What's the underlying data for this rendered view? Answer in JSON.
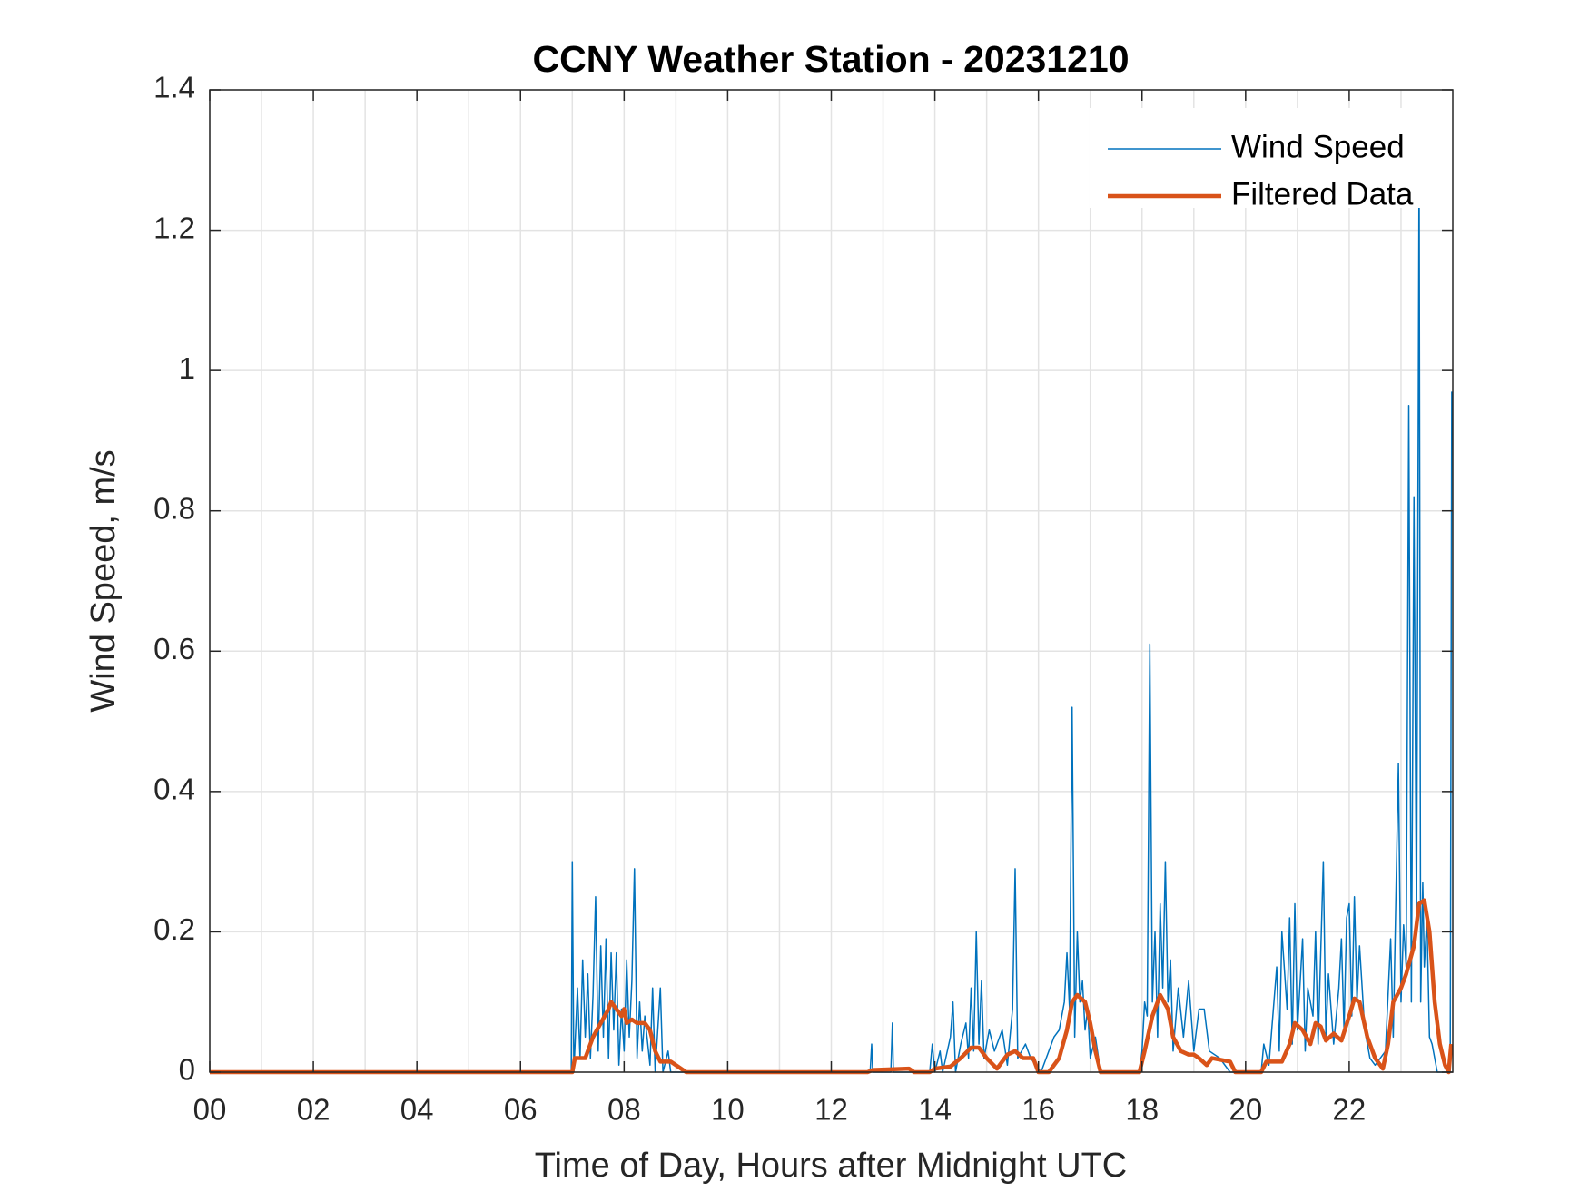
{
  "chart_data": {
    "type": "line",
    "title": "CCNY Weather Station - 20231210",
    "x_label": "Time of Day, Hours after Midnight UTC",
    "y_label": "Wind Speed, m/s",
    "xlim": [
      0,
      24
    ],
    "ylim": [
      0,
      1.4
    ],
    "xticks": [
      {
        "value": 0,
        "label": "00"
      },
      {
        "value": 2,
        "label": "02"
      },
      {
        "value": 4,
        "label": "04"
      },
      {
        "value": 6,
        "label": "06"
      },
      {
        "value": 8,
        "label": "08"
      },
      {
        "value": 10,
        "label": "10"
      },
      {
        "value": 12,
        "label": "12"
      },
      {
        "value": 14,
        "label": "14"
      },
      {
        "value": 16,
        "label": "16"
      },
      {
        "value": 18,
        "label": "18"
      },
      {
        "value": 20,
        "label": "20"
      },
      {
        "value": 22,
        "label": "22"
      }
    ],
    "xminorgrid": [
      1,
      3,
      5,
      7,
      9,
      11,
      13,
      15,
      17,
      19,
      21,
      23
    ],
    "yticks": [
      0,
      0.2,
      0.4,
      0.6,
      0.8,
      1,
      1.2,
      1.4
    ],
    "grid": true,
    "legend": "northeast",
    "series": [
      {
        "name": "Wind Speed",
        "color": "#0072bd",
        "width": 1.5,
        "x": [
          0,
          6.98,
          7.0,
          7.03,
          7.1,
          7.15,
          7.2,
          7.25,
          7.3,
          7.35,
          7.4,
          7.45,
          7.5,
          7.55,
          7.6,
          7.65,
          7.7,
          7.75,
          7.8,
          7.85,
          7.9,
          7.95,
          8.0,
          8.05,
          8.1,
          8.15,
          8.2,
          8.25,
          8.3,
          8.35,
          8.4,
          8.5,
          8.55,
          8.6,
          8.7,
          8.75,
          8.85,
          8.9,
          12.75,
          12.78,
          12.8,
          13.15,
          13.18,
          13.2,
          13.9,
          13.95,
          14.0,
          14.1,
          14.15,
          14.3,
          14.35,
          14.4,
          14.5,
          14.6,
          14.65,
          14.7,
          14.75,
          14.8,
          14.85,
          14.9,
          14.95,
          15.05,
          15.15,
          15.3,
          15.4,
          15.5,
          15.55,
          15.6,
          15.75,
          15.85,
          16.05,
          16.3,
          16.4,
          16.5,
          16.55,
          16.6,
          16.65,
          16.68,
          16.7,
          16.75,
          16.8,
          16.85,
          16.9,
          16.95,
          17.0,
          17.1,
          17.2,
          17.95,
          18.0,
          18.05,
          18.1,
          18.15,
          18.2,
          18.25,
          18.3,
          18.35,
          18.4,
          18.45,
          18.5,
          18.55,
          18.6,
          18.7,
          18.8,
          18.9,
          19.0,
          19.1,
          19.2,
          19.3,
          19.5,
          19.7,
          20.3,
          20.35,
          20.45,
          20.6,
          20.65,
          20.7,
          20.8,
          20.85,
          20.9,
          20.95,
          21.0,
          21.1,
          21.15,
          21.2,
          21.3,
          21.35,
          21.4,
          21.5,
          21.55,
          21.6,
          21.7,
          21.8,
          21.85,
          21.9,
          21.95,
          22.0,
          22.05,
          22.1,
          22.15,
          22.2,
          22.3,
          22.4,
          22.5,
          22.7,
          22.8,
          22.85,
          22.95,
          23.0,
          23.05,
          23.1,
          23.15,
          23.2,
          23.25,
          23.3,
          23.35,
          23.38,
          23.42,
          23.45,
          23.5,
          23.55,
          23.6,
          23.65,
          23.7,
          23.95,
          23.98
        ],
        "values": [
          0,
          0,
          0.3,
          0,
          0.12,
          0.02,
          0.16,
          0.05,
          0.14,
          0.02,
          0.11,
          0.25,
          0.03,
          0.18,
          0.05,
          0.19,
          0.02,
          0.17,
          0.06,
          0.17,
          0.01,
          0.09,
          0.03,
          0.16,
          0.05,
          0.13,
          0.29,
          0.02,
          0.1,
          0.03,
          0.08,
          0.01,
          0.12,
          0,
          0.12,
          0,
          0.03,
          0,
          0,
          0.04,
          0,
          0,
          0.07,
          0,
          0,
          0.04,
          0,
          0.03,
          0,
          0.05,
          0.1,
          0,
          0.04,
          0.07,
          0.02,
          0.12,
          0.03,
          0.2,
          0.04,
          0.13,
          0.02,
          0.06,
          0.03,
          0.06,
          0.01,
          0.09,
          0.29,
          0.02,
          0.04,
          0.02,
          0,
          0.05,
          0.06,
          0.1,
          0.17,
          0.09,
          0.52,
          0.25,
          0.05,
          0.2,
          0.1,
          0.13,
          0.06,
          0.09,
          0.02,
          0.05,
          0,
          0,
          0.03,
          0.1,
          0.08,
          0.61,
          0.1,
          0.2,
          0.05,
          0.24,
          0.12,
          0.3,
          0.1,
          0.16,
          0.03,
          0.12,
          0.05,
          0.13,
          0.03,
          0.09,
          0.09,
          0.03,
          0.02,
          0,
          0,
          0.04,
          0.01,
          0.15,
          0.03,
          0.2,
          0.09,
          0.22,
          0.04,
          0.24,
          0.06,
          0.19,
          0.03,
          0.12,
          0.08,
          0.2,
          0.04,
          0.3,
          0.05,
          0.14,
          0.04,
          0.12,
          0.19,
          0.06,
          0.22,
          0.24,
          0.08,
          0.25,
          0.1,
          0.18,
          0.06,
          0.02,
          0.01,
          0.03,
          0.19,
          0.05,
          0.44,
          0.1,
          0.21,
          0.15,
          0.95,
          0.1,
          0.82,
          0.2,
          1.3,
          0.1,
          0.27,
          0.15,
          0.22,
          0.05,
          0.04,
          0.02,
          0,
          0,
          0.97
        ]
      },
      {
        "name": "Filtered Data",
        "color": "#d95319",
        "width": 4.5,
        "x": [
          0,
          7.0,
          7.05,
          7.25,
          7.4,
          7.55,
          7.7,
          7.75,
          7.85,
          7.95,
          8.0,
          8.05,
          8.15,
          8.25,
          8.4,
          8.5,
          8.6,
          8.7,
          8.9,
          9.1,
          9.2,
          12.7,
          12.8,
          13.5,
          13.6,
          13.9,
          14.0,
          14.3,
          14.5,
          14.7,
          14.85,
          15.0,
          15.2,
          15.4,
          15.55,
          15.7,
          15.9,
          16.0,
          16.2,
          16.4,
          16.55,
          16.65,
          16.75,
          16.9,
          17.0,
          17.1,
          17.2,
          17.95,
          18.05,
          18.2,
          18.35,
          18.5,
          18.6,
          18.75,
          18.9,
          19.0,
          19.1,
          19.25,
          19.35,
          19.7,
          19.8,
          20.3,
          20.4,
          20.7,
          20.85,
          20.95,
          21.1,
          21.25,
          21.35,
          21.45,
          21.55,
          21.7,
          21.85,
          22.0,
          22.1,
          22.2,
          22.35,
          22.5,
          22.65,
          22.75,
          22.85,
          23.0,
          23.1,
          23.25,
          23.35,
          23.45,
          23.55,
          23.65,
          23.75,
          23.85,
          23.92,
          23.97
        ],
        "values": [
          0,
          0,
          0.02,
          0.02,
          0.05,
          0.07,
          0.09,
          0.1,
          0.09,
          0.08,
          0.09,
          0.07,
          0.075,
          0.07,
          0.07,
          0.06,
          0.03,
          0.015,
          0.015,
          0.005,
          0,
          0,
          0.003,
          0.005,
          0,
          0,
          0.005,
          0.008,
          0.02,
          0.035,
          0.035,
          0.02,
          0.005,
          0.025,
          0.03,
          0.02,
          0.02,
          0,
          0,
          0.02,
          0.06,
          0.1,
          0.11,
          0.1,
          0.07,
          0.03,
          0,
          0,
          0.03,
          0.08,
          0.11,
          0.09,
          0.05,
          0.03,
          0.025,
          0.025,
          0.02,
          0.01,
          0.02,
          0.015,
          0,
          0,
          0.015,
          0.015,
          0.04,
          0.07,
          0.06,
          0.04,
          0.07,
          0.065,
          0.045,
          0.055,
          0.045,
          0.08,
          0.105,
          0.1,
          0.05,
          0.02,
          0.005,
          0.04,
          0.1,
          0.12,
          0.14,
          0.18,
          0.24,
          0.245,
          0.2,
          0.1,
          0.04,
          0.01,
          0,
          0.04
        ]
      }
    ]
  }
}
